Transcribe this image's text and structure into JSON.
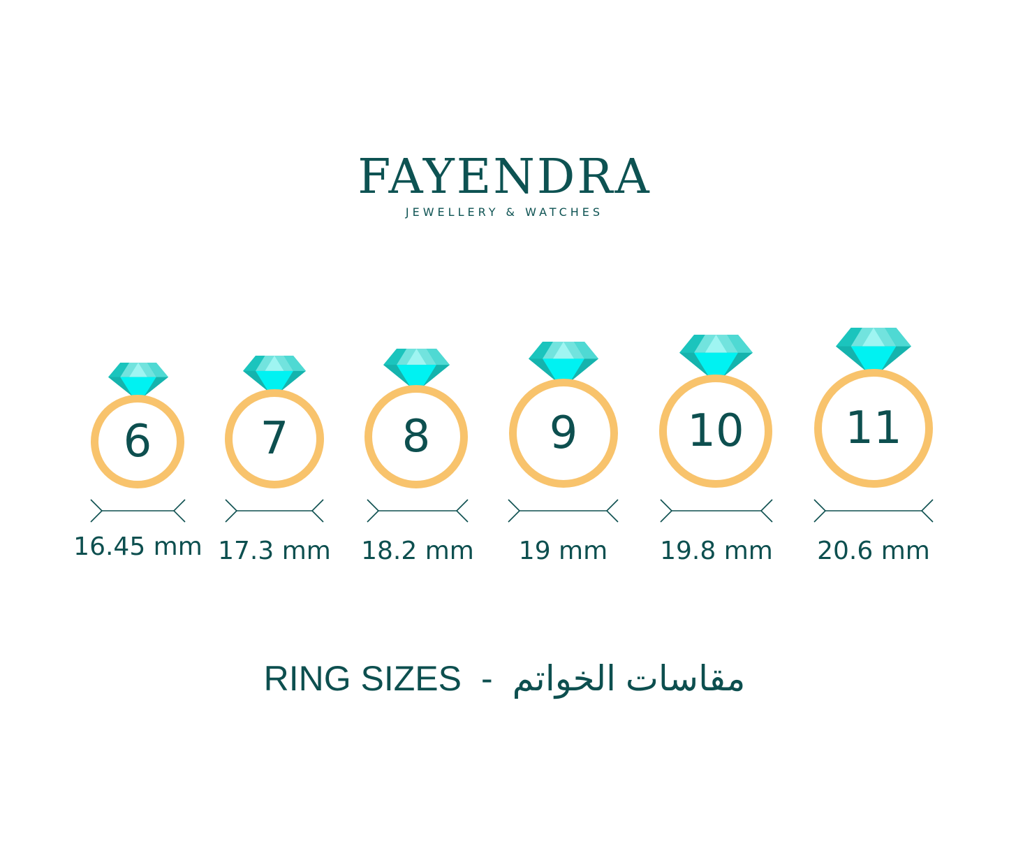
{
  "brand": {
    "name": "FAYENDRA",
    "tagline": "JEWELLERY & WATCHES"
  },
  "colors": {
    "teal": "#0d4f4f",
    "gold": "#f8c36c",
    "gem_dark": "#1bc4bd",
    "gem_bright": "#00f2f2",
    "gem_light": "#72e3de"
  },
  "sizes": [
    {
      "size": "6",
      "diameter": "16.45 mm"
    },
    {
      "size": "7",
      "diameter": "17.3 mm"
    },
    {
      "size": "8",
      "diameter": "18.2 mm"
    },
    {
      "size": "9",
      "diameter": "19 mm"
    },
    {
      "size": "10",
      "diameter": "19.8 mm"
    },
    {
      "size": "11",
      "diameter": "20.6 mm"
    }
  ],
  "title": {
    "english": "RING SIZES",
    "separator": "-",
    "arabic": "مقاسات الخواتم"
  }
}
